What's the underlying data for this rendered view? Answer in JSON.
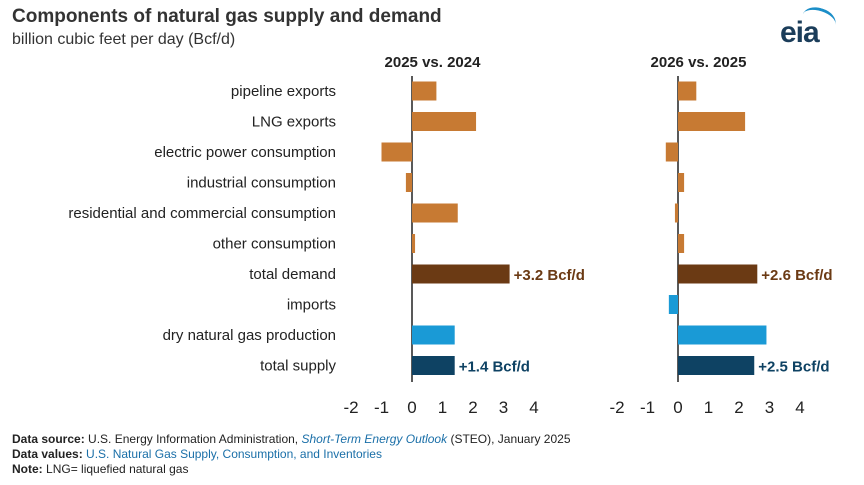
{
  "header": {
    "title": "Components of natural gas supply and demand",
    "subtitle": "billion cubic feet per day (Bcf/d)"
  },
  "logo": {
    "text": "eia"
  },
  "colors": {
    "demand": "#c77a33",
    "total_demand": "#6b3a14",
    "supply": "#1a9ad6",
    "total_supply": "#0e4263",
    "label_demand": "#6b3a14",
    "label_supply": "#0e4263"
  },
  "chart_data": {
    "type": "bar",
    "orientation": "horizontal",
    "categories": [
      "pipeline exports",
      "LNG exports",
      "electric power consumption",
      "industrial consumption",
      "residential and commercial consumption",
      "other consumption",
      "total demand",
      "imports",
      "dry natural gas production",
      "total supply"
    ],
    "category_groups": [
      "demand",
      "demand",
      "demand",
      "demand",
      "demand",
      "demand",
      "total_demand",
      "supply",
      "supply",
      "total_supply"
    ],
    "xlim": [
      -2,
      4
    ],
    "xticks": [
      "-2",
      "-1",
      "0",
      "1",
      "2",
      "3",
      "4"
    ],
    "xtick_values": [
      -2,
      -1,
      0,
      1,
      2,
      3,
      4
    ],
    "panels": [
      {
        "title": "2025 vs. 2024",
        "values": [
          0.8,
          2.1,
          -1.0,
          -0.2,
          1.5,
          0.1,
          3.2,
          0.0,
          1.4,
          1.4
        ],
        "annotations": [
          {
            "index": 6,
            "text": "+3.2 Bcf/d"
          },
          {
            "index": 9,
            "text": "+1.4 Bcf/d"
          }
        ]
      },
      {
        "title": "2026 vs. 2025",
        "values": [
          0.6,
          2.2,
          -0.4,
          0.2,
          -0.1,
          0.2,
          2.6,
          -0.3,
          2.9,
          2.5
        ],
        "annotations": [
          {
            "index": 6,
            "text": "+2.6 Bcf/d"
          },
          {
            "index": 9,
            "text": "+2.5 Bcf/d"
          }
        ]
      }
    ]
  },
  "footer": {
    "source_label": "Data source:",
    "source_text1": "U.S. Energy Information Administration,",
    "source_italic": "Short-Term Energy Outlook",
    "source_text2": "(STEO), January 2025",
    "values_label": "Data values:",
    "values_link": "U.S. Natural Gas Supply, Consumption, and Inventories",
    "note_label": "Note:",
    "note_text": "LNG= liquefied natural gas"
  }
}
